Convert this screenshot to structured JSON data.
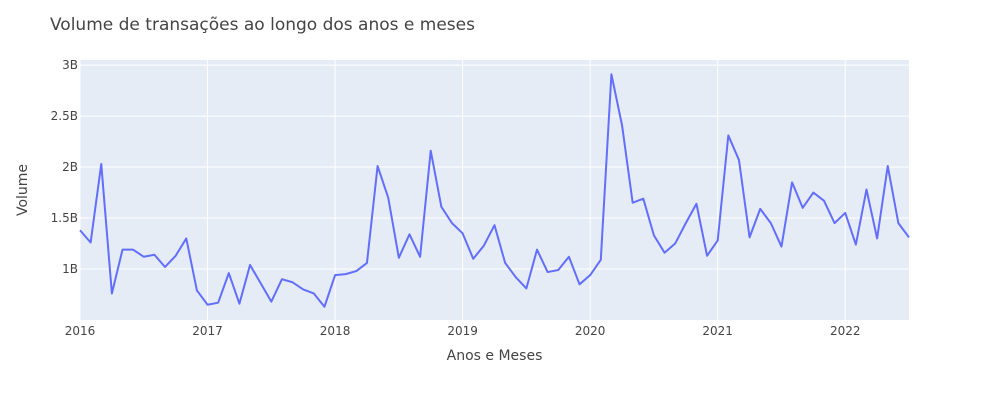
{
  "chart_data": {
    "type": "line",
    "title": "Volume de transações ao longo dos anos e meses",
    "xlabel": "Anos e Meses",
    "ylabel": "Volume",
    "xlim": [
      "2016-01",
      "2022-07"
    ],
    "ylim": [
      0.5,
      3.05
    ],
    "x_ticks": [
      {
        "value": "2016-01",
        "label": "2016"
      },
      {
        "value": "2017-01",
        "label": "2017"
      },
      {
        "value": "2018-01",
        "label": "2018"
      },
      {
        "value": "2019-01",
        "label": "2019"
      },
      {
        "value": "2020-01",
        "label": "2020"
      },
      {
        "value": "2021-01",
        "label": "2021"
      },
      {
        "value": "2022-01",
        "label": "2022"
      }
    ],
    "y_ticks": [
      {
        "value": 1.0,
        "label": "1B"
      },
      {
        "value": 1.5,
        "label": "1.5B"
      },
      {
        "value": 2.0,
        "label": "2B"
      },
      {
        "value": 2.5,
        "label": "2.5B"
      },
      {
        "value": 3.0,
        "label": "3B"
      }
    ],
    "grid": true,
    "colors": {
      "line": "#636efa",
      "plot_bg": "#e5ecf6",
      "grid": "#ffffff"
    },
    "series": [
      {
        "x": [
          "2016-01",
          "2016-02",
          "2016-03",
          "2016-04",
          "2016-05",
          "2016-06",
          "2016-07",
          "2016-08",
          "2016-09",
          "2016-10",
          "2016-11",
          "2016-12",
          "2017-01",
          "2017-02",
          "2017-03",
          "2017-04",
          "2017-05",
          "2017-06",
          "2017-07",
          "2017-08",
          "2017-09",
          "2017-10",
          "2017-11",
          "2017-12",
          "2018-01",
          "2018-02",
          "2018-03",
          "2018-04",
          "2018-05",
          "2018-06",
          "2018-07",
          "2018-08",
          "2018-09",
          "2018-10",
          "2018-11",
          "2018-12",
          "2019-01",
          "2019-02",
          "2019-03",
          "2019-04",
          "2019-05",
          "2019-06",
          "2019-07",
          "2019-08",
          "2019-09",
          "2019-10",
          "2019-11",
          "2019-12",
          "2020-01",
          "2020-02",
          "2020-03",
          "2020-04",
          "2020-05",
          "2020-06",
          "2020-07",
          "2020-08",
          "2020-09",
          "2020-10",
          "2020-11",
          "2020-12",
          "2021-01",
          "2021-02",
          "2021-03",
          "2021-04",
          "2021-05",
          "2021-06",
          "2021-07",
          "2021-08",
          "2021-09",
          "2021-10",
          "2021-11",
          "2021-12",
          "2022-01",
          "2022-02",
          "2022-03",
          "2022-04",
          "2022-05",
          "2022-06",
          "2022-07"
        ],
        "values": [
          1.38,
          1.26,
          2.03,
          0.76,
          1.19,
          1.19,
          1.12,
          1.14,
          1.02,
          1.13,
          1.3,
          0.79,
          0.65,
          0.67,
          0.96,
          0.66,
          1.04,
          0.86,
          0.68,
          0.9,
          0.87,
          0.8,
          0.76,
          0.63,
          0.94,
          0.95,
          0.98,
          1.06,
          2.01,
          1.7,
          1.11,
          1.34,
          1.12,
          2.16,
          1.61,
          1.45,
          1.35,
          1.1,
          1.23,
          1.43,
          1.06,
          0.92,
          0.81,
          1.19,
          0.97,
          0.99,
          1.12,
          0.85,
          0.94,
          1.09,
          2.91,
          2.41,
          1.65,
          1.69,
          1.33,
          1.16,
          1.25,
          1.45,
          1.64,
          1.13,
          1.28,
          2.31,
          2.07,
          1.31,
          1.59,
          1.45,
          1.22,
          1.85,
          1.6,
          1.75,
          1.67,
          1.45,
          1.55,
          1.24,
          1.78,
          1.3,
          2.01,
          1.45,
          1.31
        ]
      }
    ]
  }
}
